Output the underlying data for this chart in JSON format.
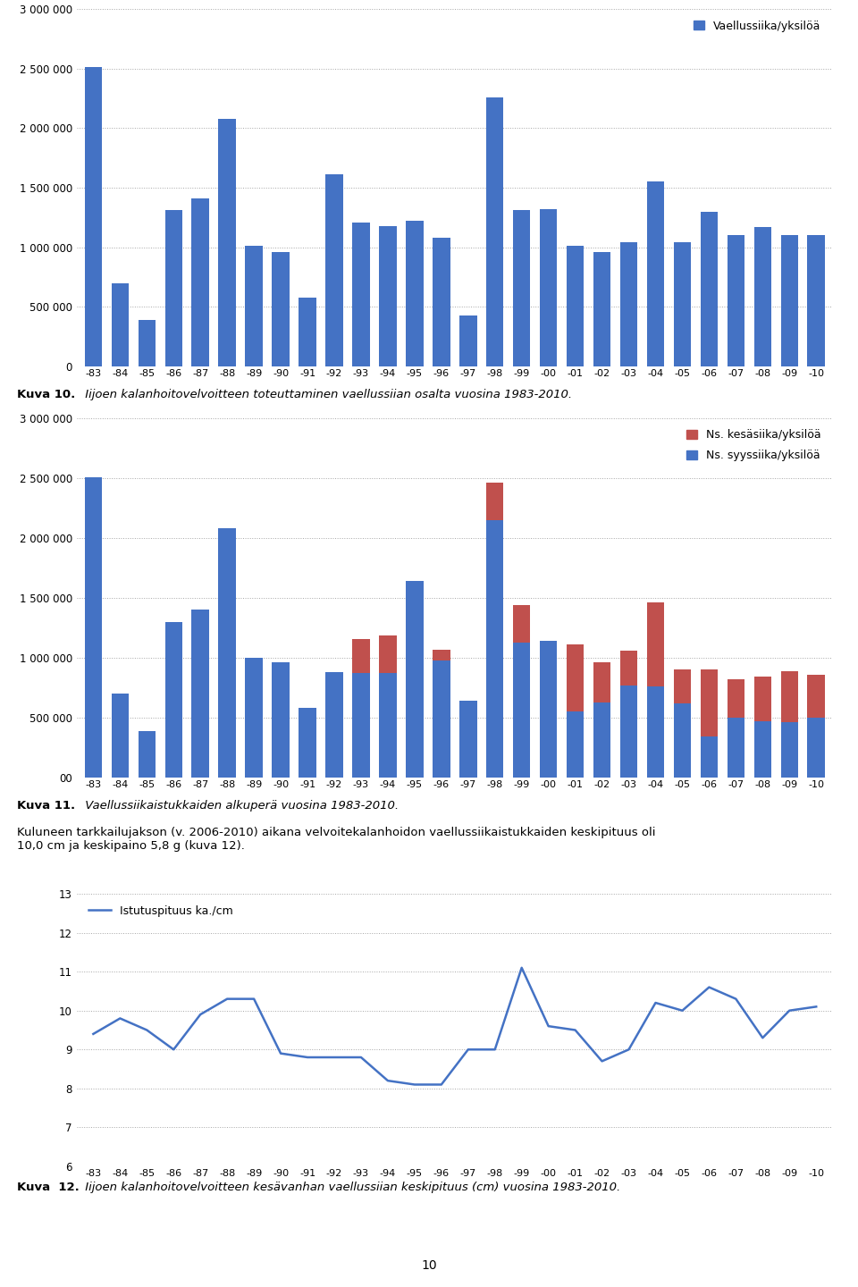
{
  "years": [
    "-83",
    "-84",
    "-85",
    "-86",
    "-87",
    "-88",
    "-89",
    "-90",
    "-91",
    "-92",
    "-93",
    "-94",
    "-95",
    "-96",
    "-97",
    "-98",
    "-99",
    "-00",
    "-01",
    "-02",
    "-03",
    "-04",
    "-05",
    "-06",
    "-07",
    "-08",
    "-09",
    "-10"
  ],
  "chart1_values": [
    2510000,
    700000,
    390000,
    1310000,
    1410000,
    2080000,
    1010000,
    960000,
    580000,
    1610000,
    1210000,
    1180000,
    1220000,
    1080000,
    430000,
    2260000,
    1310000,
    1320000,
    1010000,
    960000,
    1040000,
    1550000,
    1040000,
    1300000,
    1100000,
    1170000,
    1100000,
    1100000
  ],
  "chart2_blue": [
    2510000,
    700000,
    390000,
    1300000,
    1400000,
    2080000,
    1000000,
    960000,
    580000,
    880000,
    870000,
    870000,
    1640000,
    980000,
    640000,
    2150000,
    1130000,
    1140000,
    550000,
    630000,
    770000,
    760000,
    620000,
    340000,
    500000,
    470000,
    460000,
    500000
  ],
  "chart2_red": [
    0,
    0,
    0,
    0,
    0,
    0,
    0,
    0,
    0,
    0,
    290000,
    320000,
    0,
    90000,
    0,
    310000,
    310000,
    0,
    560000,
    330000,
    290000,
    700000,
    280000,
    560000,
    320000,
    370000,
    430000,
    360000
  ],
  "chart3_values": [
    9.4,
    9.8,
    9.5,
    9.0,
    9.9,
    10.3,
    10.3,
    8.9,
    8.8,
    8.8,
    8.8,
    8.2,
    8.1,
    8.1,
    9.0,
    9.0,
    11.1,
    9.6,
    9.5,
    8.7,
    9.0,
    10.2,
    10.0,
    10.6,
    10.3,
    9.3,
    10.0,
    10.1
  ],
  "bar_color_blue": "#4472C4",
  "bar_color_red": "#C0504D",
  "line_color": "#4472C4",
  "background_color": "#FFFFFF",
  "grid_color": "#A6A6A6",
  "chart1_legend": "Vaellussiika/yksilöä",
  "chart2_legend_red": "Ns. kesäsiika/yksilöä",
  "chart2_legend_blue": "Ns. syyssiika/yksilöä",
  "chart3_legend": "Istutuspituus ka./cm",
  "chart1_ylim": [
    0,
    3000000
  ],
  "chart2_ylim": [
    0,
    3000000
  ],
  "chart3_ylim": [
    6,
    13
  ],
  "chart1_yticks": [
    0,
    500000,
    1000000,
    1500000,
    2000000,
    2500000,
    3000000
  ],
  "chart2_yticks": [
    0,
    500000,
    1000000,
    1500000,
    2000000,
    2500000,
    3000000
  ],
  "chart3_yticks": [
    6,
    7,
    8,
    9,
    10,
    11,
    12,
    13
  ],
  "caption1_bold": "Kuva 10.",
  "caption1_italic": " Iijoen kalanhoitovelvoitteen toteuttaminen vaellussiian osalta vuosina 1983-2010.",
  "caption2_bold": "Kuva 11.",
  "caption2_italic": " Vaellussiikaistukkaiden alkuperä vuosina 1983-2010.",
  "caption3_bold": "Kuva  12.",
  "caption3_italic": " Iijoen kalanhoitovelvoitteen kesävanhan vaellussiian keskipituus (cm) vuosina 1983-2010.",
  "para_text": "Kuluneen tarkkailujakson (v. 2006-2010) aikana velvoitekalanhoidon vaellussiikaistukkaiden keskipituus oli\n10,0 cm ja keskipaino 5,8 g (kuva 12).",
  "page_number": "10"
}
